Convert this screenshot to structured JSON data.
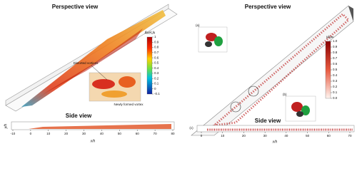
{
  "left": {
    "perspective_title": "Perspective view",
    "colorbar": {
      "title": "AveUx",
      "ticks": [
        1,
        0.9,
        0.8,
        0.7,
        0.6,
        0.5,
        0.4,
        0.3,
        0.2,
        0.1,
        0,
        -0.1
      ]
    },
    "annotations": [
      "Distorted vortices",
      "Newly formed vortex"
    ],
    "side_view": {
      "title": "Side view",
      "y_label": "y/h",
      "x_label": "x/h",
      "xticks": [
        -10,
        0,
        10,
        20,
        30,
        40,
        50,
        60,
        70,
        80
      ]
    }
  },
  "right": {
    "perspective_title": "Perspective view",
    "insets": [
      "(a)",
      "(b)"
    ],
    "colorbar": {
      "title": "u/u∞",
      "ticks": [
        {
          "value": 1,
          "label": "1.0"
        },
        0.9,
        0.8,
        0.7,
        0.6,
        0.5,
        0.4,
        0.3,
        0.2,
        0.1,
        {
          "value": 0,
          "label": "0.0"
        }
      ]
    },
    "side_view": {
      "title": "Side view",
      "panel": "(c)",
      "x_label": "x/h",
      "xticks": [
        0,
        10,
        20,
        30,
        40,
        50,
        60,
        70
      ]
    }
  }
}
